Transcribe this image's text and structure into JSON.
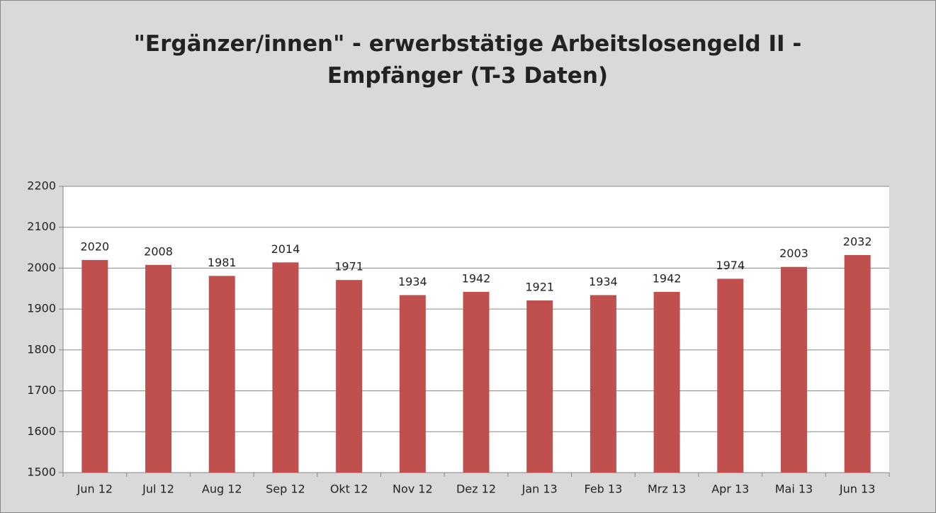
{
  "chart_data": {
    "type": "bar",
    "title": "\"Ergänzer/innen\" - erwerbstätige Arbeitslosengeld II - Empfänger (T-3 Daten)",
    "categories": [
      "Jun 12",
      "Jul 12",
      "Aug 12",
      "Sep 12",
      "Okt 12",
      "Nov 12",
      "Dez 12",
      "Jan 13",
      "Feb 13",
      "Mrz 13",
      "Apr 13",
      "Mai 13",
      "Jun 13"
    ],
    "values": [
      2020,
      2008,
      1981,
      2014,
      1971,
      1934,
      1942,
      1921,
      1934,
      1942,
      1974,
      2003,
      2032
    ],
    "color": "#c0504d",
    "ylim": [
      1500,
      2200
    ],
    "yticks": [
      1500,
      1600,
      1700,
      1800,
      1900,
      2000,
      2100,
      2200
    ],
    "grid": true
  }
}
